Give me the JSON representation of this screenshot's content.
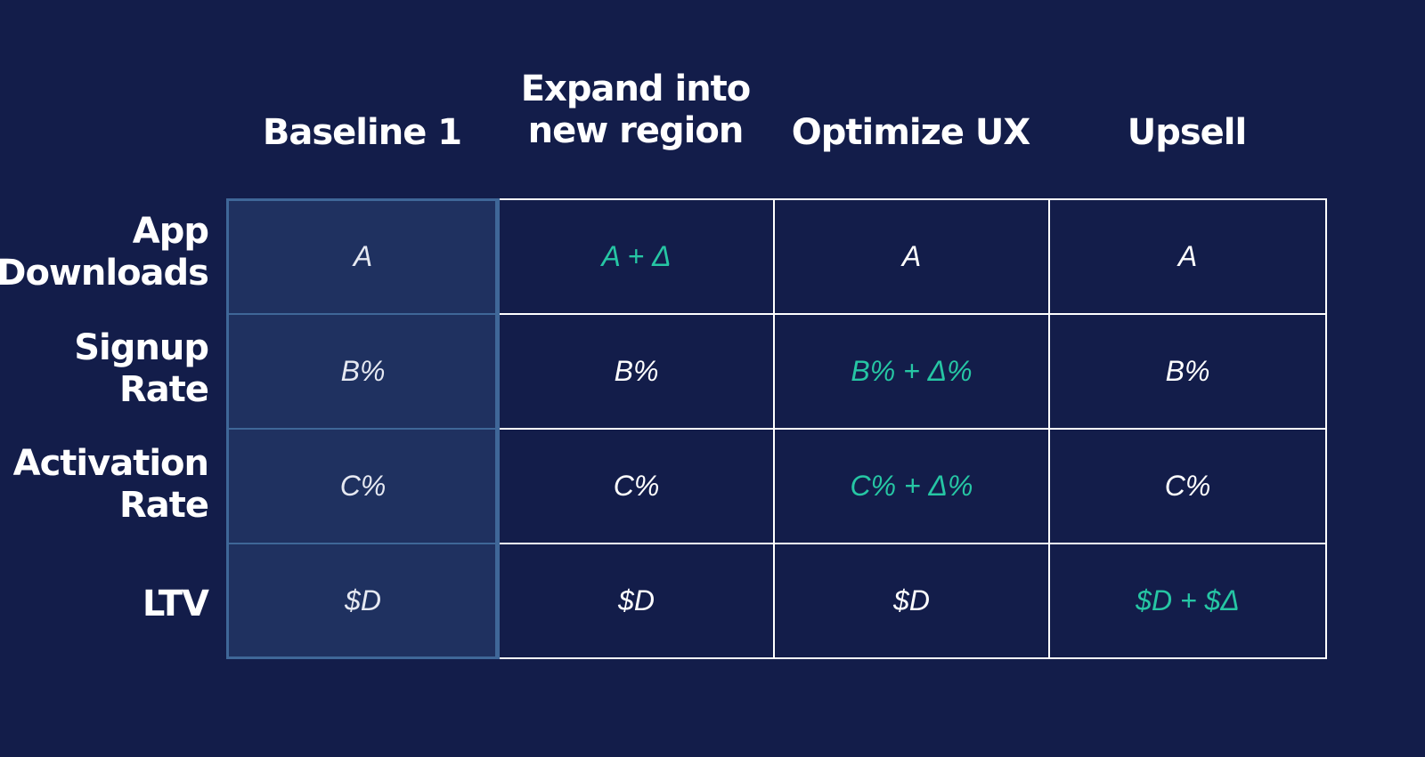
{
  "columns": [
    {
      "lines": [
        "Baseline 1"
      ]
    },
    {
      "lines": [
        "Expand into",
        "new region"
      ]
    },
    {
      "lines": [
        "Optimize UX"
      ]
    },
    {
      "lines": [
        "Upsell"
      ]
    }
  ],
  "rows": [
    {
      "lines": [
        "App",
        "Downloads"
      ],
      "cells": [
        "A",
        "A + Δ",
        "A",
        "A"
      ],
      "highlight": [
        false,
        true,
        false,
        false
      ]
    },
    {
      "lines": [
        "Signup",
        "Rate"
      ],
      "cells": [
        "B%",
        "B%",
        "B% + Δ%",
        "B%"
      ],
      "highlight": [
        false,
        false,
        true,
        false
      ]
    },
    {
      "lines": [
        "Activation",
        "Rate"
      ],
      "cells": [
        "C%",
        "C%",
        "C% + Δ%",
        "C%"
      ],
      "highlight": [
        false,
        false,
        true,
        false
      ]
    },
    {
      "lines": [
        "LTV"
      ],
      "cells": [
        "$D",
        "$D",
        "$D",
        "$D + $Δ"
      ],
      "highlight": [
        false,
        false,
        false,
        true
      ]
    }
  ],
  "colors": {
    "background": "#131d4a",
    "text": "#ffffff",
    "highlight": "#26c6a4",
    "baseline_fill": "#1f3160",
    "baseline_border": "#3f6798"
  }
}
